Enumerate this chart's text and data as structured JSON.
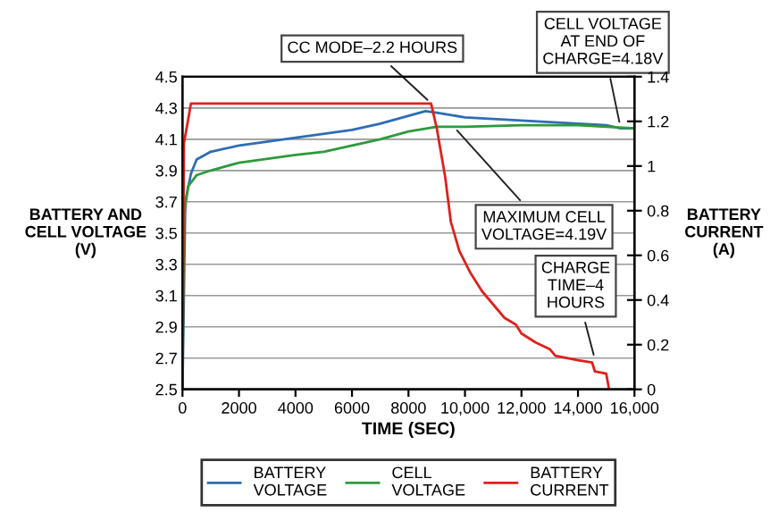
{
  "chart_data": {
    "type": "line",
    "xlabel": "TIME (SEC)",
    "ylabel": "BATTERY AND\nCELL VOLTAGE\n(V)",
    "y2label": "BATTERY\nCURRENT\n(A)",
    "xlim": [
      0,
      16000
    ],
    "xticks": [
      0,
      2000,
      4000,
      6000,
      8000,
      {
        "value": 10000,
        "label": "10,000"
      },
      {
        "value": 12000,
        "label": "12,000"
      },
      {
        "value": 14000,
        "label": "14,000"
      },
      {
        "value": 16000,
        "label": "16,000"
      }
    ],
    "ylim": [
      2.5,
      4.5
    ],
    "yticks": [
      2.5,
      2.7,
      2.9,
      3.1,
      3.3,
      3.5,
      3.7,
      3.9,
      4.1,
      4.3,
      4.5
    ],
    "y2lim": [
      0,
      1.4
    ],
    "y2ticks": [
      0,
      0.2,
      0.4,
      0.6,
      0.8,
      1,
      1.2,
      1.4
    ],
    "grid": "y",
    "legend": "bottom",
    "series": [
      {
        "name": "BATTERY\nVOLTAGE",
        "color": "#2e6db4",
        "x": [
          0,
          100,
          300,
          500,
          1000,
          2000,
          4000,
          6000,
          7000,
          8000,
          8600,
          9000,
          10000,
          12000,
          14000,
          15000,
          15500,
          16000
        ],
        "values": [
          2.5,
          3.7,
          3.88,
          3.97,
          4.02,
          4.06,
          4.11,
          4.16,
          4.2,
          4.25,
          4.28,
          4.27,
          4.24,
          4.22,
          4.2,
          4.19,
          4.17,
          4.17
        ]
      },
      {
        "name": "CELL\nVOLTAGE",
        "color": "#2e9a3c",
        "x": [
          0,
          50,
          200,
          500,
          1000,
          2000,
          4000,
          5000,
          6000,
          7000,
          8000,
          9000,
          10000,
          12000,
          14000,
          15000,
          16000
        ],
        "values": [
          2.5,
          3.6,
          3.8,
          3.87,
          3.9,
          3.95,
          4.0,
          4.02,
          4.06,
          4.1,
          4.15,
          4.18,
          4.18,
          4.19,
          4.19,
          4.18,
          4.17
        ]
      },
      {
        "name": "BATTERY\nCURRENT",
        "color": "#e0201c",
        "axis": "y2",
        "x": [
          0,
          50,
          300,
          8800,
          9000,
          9300,
          9500,
          9800,
          10000,
          10200,
          10600,
          11000,
          11400,
          11800,
          12000,
          12500,
          13000,
          13200,
          14000,
          14500,
          14600,
          15000,
          15100
        ],
        "values": [
          0,
          1.1,
          1.28,
          1.28,
          1.17,
          0.95,
          0.75,
          0.62,
          0.57,
          0.52,
          0.44,
          0.38,
          0.32,
          0.29,
          0.25,
          0.21,
          0.18,
          0.15,
          0.13,
          0.12,
          0.08,
          0.07,
          0
        ]
      }
    ],
    "annotations": [
      {
        "text": "CC MODE–2.2 HOURS",
        "x": 8800,
        "y": 4.33
      },
      {
        "text": "CELL VOLTAGE\nAT END OF\nCHARGE=4.18V",
        "x": 15500,
        "y": 4.18
      },
      {
        "text": "MAXIMUM CELL\nVOLTAGE=4.19V",
        "x": 9600,
        "y": 4.18
      },
      {
        "text": "CHARGE\nTIME–4\nHOURS",
        "x": 14600,
        "y": 2.69
      }
    ]
  }
}
